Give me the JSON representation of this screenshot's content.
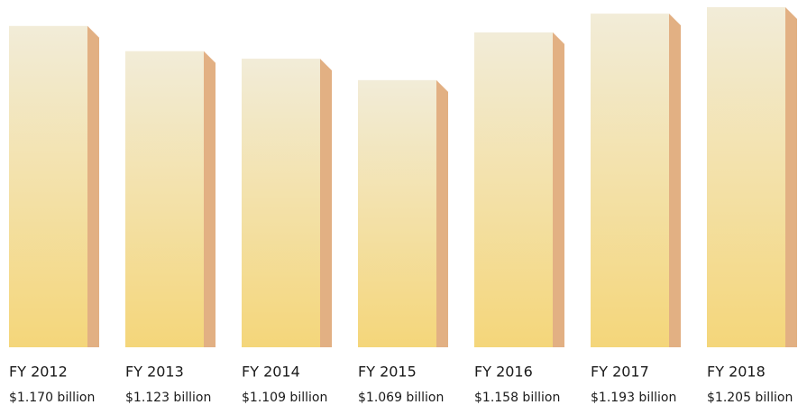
{
  "chart_data": {
    "type": "bar3d",
    "categories": [
      "FY 2012",
      "FY 2013",
      "FY 2014",
      "FY 2015",
      "FY 2016",
      "FY 2017",
      "FY 2018"
    ],
    "values": [
      1.17,
      1.123,
      1.109,
      1.069,
      1.158,
      1.193,
      1.205
    ],
    "value_labels": [
      "$1.170 billion",
      "$1.123 billion",
      "$1.109 billion",
      "$1.069 billion",
      "$1.158 billion",
      "$1.193 billion",
      "$1.205 billion"
    ],
    "color": "#f4d67a",
    "top_color": "#f2ecd8",
    "side_color": "#e2b083",
    "ylim": [
      0.571,
      1.21
    ]
  }
}
